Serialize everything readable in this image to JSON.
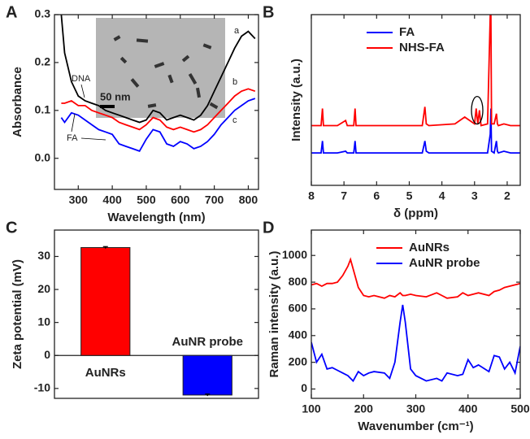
{
  "chart_data": [
    {
      "type": "line",
      "label": "A",
      "xlabel": "Wavelength (nm)",
      "ylabel": "Absorbance",
      "xlim": [
        230,
        830
      ],
      "ylim": [
        -0.065,
        0.3
      ],
      "xticks": [
        300,
        400,
        500,
        600,
        700,
        800
      ],
      "yticks": [
        {
          "value": 0,
          "label": "0.0"
        },
        0.1,
        0.2,
        0.3
      ],
      "annotations": [
        "a",
        "b",
        "c",
        "DNA",
        "FA",
        "50 nm"
      ],
      "x": [
        250,
        260,
        280,
        300,
        320,
        340,
        360,
        380,
        400,
        420,
        440,
        460,
        480,
        500,
        520,
        540,
        560,
        580,
        600,
        620,
        640,
        660,
        680,
        700,
        720,
        740,
        760,
        780,
        800,
        820
      ],
      "series": [
        {
          "name": "a",
          "color": "#000000",
          "values": [
            0.3,
            0.22,
            0.16,
            0.13,
            0.12,
            0.115,
            0.11,
            0.1,
            0.095,
            0.09,
            0.085,
            0.08,
            0.075,
            0.08,
            0.1,
            0.095,
            0.08,
            0.085,
            0.09,
            0.085,
            0.08,
            0.09,
            0.11,
            0.14,
            0.17,
            0.2,
            0.23,
            0.255,
            0.265,
            0.25
          ]
        },
        {
          "name": "b",
          "color": "#ff0000",
          "values": [
            0.115,
            0.115,
            0.12,
            0.11,
            0.11,
            0.1,
            0.095,
            0.09,
            0.085,
            0.075,
            0.07,
            0.065,
            0.06,
            0.07,
            0.085,
            0.08,
            0.065,
            0.06,
            0.065,
            0.06,
            0.055,
            0.06,
            0.07,
            0.085,
            0.1,
            0.115,
            0.13,
            0.14,
            0.145,
            0.14
          ]
        },
        {
          "name": "c",
          "color": "#0000ff",
          "values": [
            0.085,
            0.075,
            0.095,
            0.09,
            0.08,
            0.07,
            0.06,
            0.055,
            0.05,
            0.03,
            0.025,
            0.02,
            0.015,
            0.04,
            0.06,
            0.055,
            0.03,
            0.025,
            0.035,
            0.03,
            0.02,
            0.025,
            0.035,
            0.05,
            0.07,
            0.085,
            0.1,
            0.11,
            0.12,
            0.125
          ]
        }
      ]
    },
    {
      "type": "line",
      "label": "B",
      "xlabel": "δ (ppm)",
      "ylabel": "Intensity (a.u.)",
      "xlim": [
        8.0,
        1.6
      ],
      "ylim": [
        0,
        10
      ],
      "xticks": [
        8,
        7,
        6,
        5,
        4,
        3,
        2
      ],
      "legend": "upper center",
      "x": [
        8.0,
        7.7,
        7.66,
        7.63,
        7.6,
        7.2,
        6.95,
        6.9,
        6.85,
        6.7,
        6.66,
        6.63,
        6.6,
        5.5,
        4.6,
        4.52,
        4.48,
        4.4,
        3.6,
        3.3,
        3.0,
        2.95,
        2.9,
        2.85,
        2.8,
        2.6,
        2.52,
        2.5,
        2.48,
        2.4,
        2.33,
        2.3,
        2.27,
        2.1,
        1.9,
        1.6
      ],
      "series": [
        {
          "name": "FA",
          "color": "#0000ff",
          "values": [
            1.9,
            1.9,
            2.6,
            1.9,
            1.9,
            1.9,
            2.0,
            1.9,
            1.9,
            1.9,
            2.6,
            1.9,
            1.9,
            1.9,
            1.9,
            2.6,
            2.0,
            1.9,
            1.9,
            1.9,
            1.9,
            1.9,
            1.9,
            1.9,
            1.9,
            1.9,
            3.0,
            4.5,
            2.0,
            1.9,
            2.6,
            2.0,
            1.9,
            2.0,
            1.9,
            1.9
          ]
        },
        {
          "name": "NHS-FA",
          "color": "#ff0000",
          "values": [
            3.5,
            3.5,
            4.5,
            3.5,
            3.5,
            3.5,
            3.8,
            3.5,
            3.5,
            3.5,
            4.5,
            3.5,
            3.5,
            3.5,
            3.5,
            4.6,
            3.6,
            3.5,
            3.6,
            4.0,
            3.6,
            4.5,
            3.6,
            4.4,
            3.5,
            3.6,
            10,
            10,
            3.6,
            3.6,
            4.2,
            3.6,
            3.5,
            3.6,
            3.5,
            3.5
          ]
        }
      ]
    },
    {
      "type": "bar",
      "label": "C",
      "ylabel": "Zeta potential (mV)",
      "ylim": [
        -13,
        38
      ],
      "yticks": [
        -10,
        0,
        10,
        20,
        30
      ],
      "categories": [
        "AuNRs",
        "AuNR probe"
      ],
      "values": [
        32.7,
        -12
      ],
      "errors": [
        0.3,
        0.3
      ],
      "colors": [
        "#ff0000",
        "#0000ff"
      ]
    },
    {
      "type": "line",
      "label": "D",
      "xlabel": "Wavenumber (cm⁻¹)",
      "ylabel": "Raman intensity (a.u.)",
      "xlim": [
        100,
        500
      ],
      "ylim": [
        -70,
        1190
      ],
      "xticks": [
        100,
        200,
        300,
        400,
        500
      ],
      "yticks": [
        0,
        200,
        400,
        600,
        800,
        1000
      ],
      "legend": "upper right",
      "x": [
        100,
        110,
        120,
        130,
        140,
        150,
        160,
        170,
        175,
        180,
        190,
        200,
        210,
        220,
        240,
        250,
        260,
        270,
        275,
        280,
        290,
        300,
        320,
        340,
        350,
        360,
        380,
        390,
        400,
        410,
        420,
        440,
        450,
        460,
        470,
        480,
        490,
        500
      ],
      "series": [
        {
          "name": "AuNRs",
          "color": "#ff0000",
          "values": [
            780,
            790,
            770,
            790,
            790,
            800,
            850,
            920,
            970,
            900,
            760,
            700,
            690,
            700,
            680,
            700,
            690,
            720,
            700,
            700,
            710,
            700,
            690,
            720,
            700,
            680,
            690,
            720,
            700,
            710,
            720,
            700,
            730,
            740,
            760,
            770,
            780,
            790
          ]
        },
        {
          "name": "AuNR probe",
          "color": "#0000ff",
          "values": [
            350,
            200,
            260,
            150,
            160,
            140,
            120,
            100,
            80,
            60,
            130,
            100,
            120,
            130,
            120,
            80,
            200,
            500,
            630,
            500,
            150,
            100,
            60,
            80,
            60,
            120,
            100,
            110,
            220,
            160,
            180,
            130,
            250,
            240,
            150,
            200,
            120,
            320
          ]
        }
      ]
    }
  ]
}
